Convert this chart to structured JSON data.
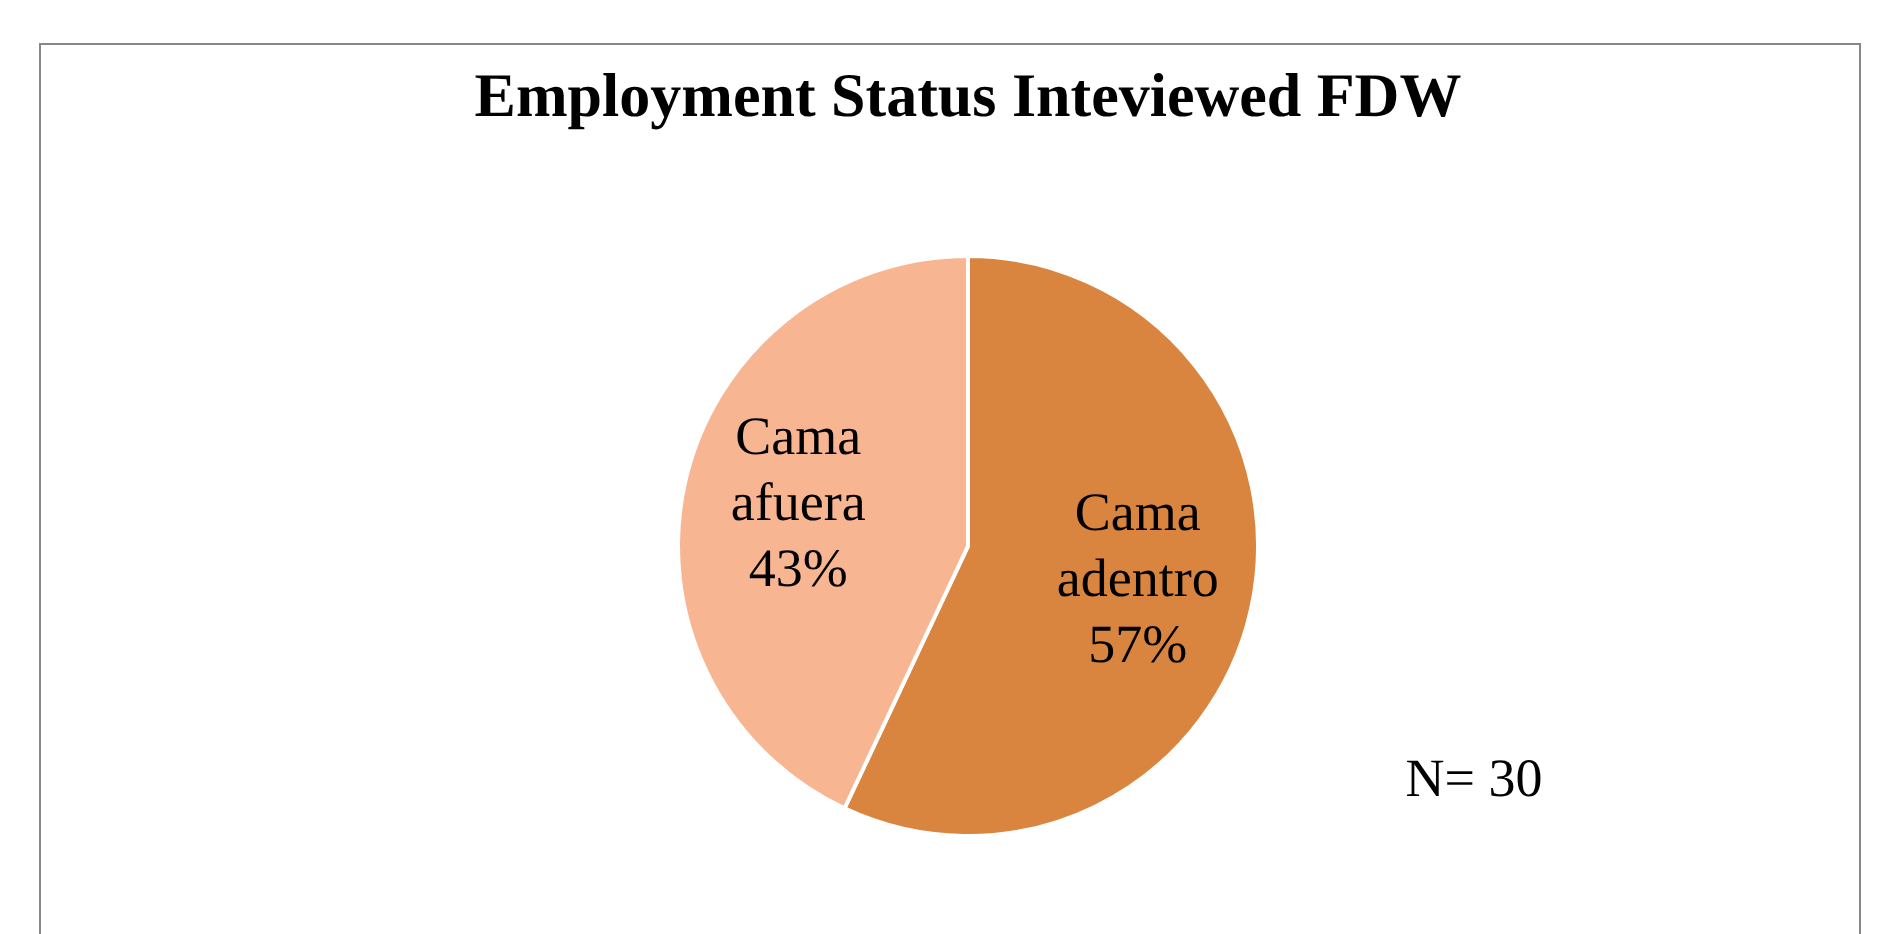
{
  "chart_data": {
    "type": "pie",
    "title": "Employment Status Inteviewed FDW",
    "categories": [
      "Cama adentro",
      "Cama afuera"
    ],
    "values": [
      57,
      43
    ],
    "colors": [
      "#d9843f",
      "#f8b592"
    ],
    "value_labels": [
      "57%",
      "43%"
    ],
    "annotations": [
      "N= 30"
    ]
  }
}
